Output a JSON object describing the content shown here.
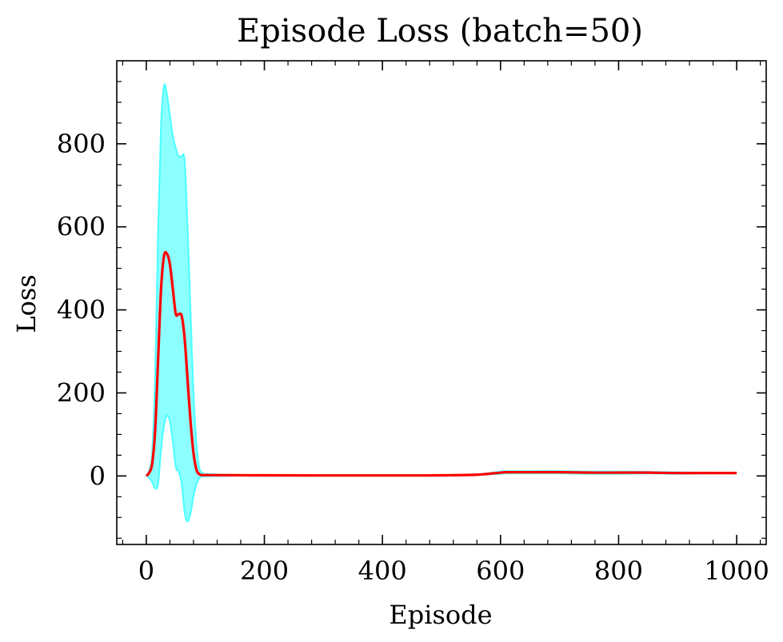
{
  "chart_data": {
    "type": "line",
    "title": "Episode Loss (batch=50)",
    "xlabel": "Episode",
    "ylabel": "Loss",
    "xlim": [
      -50,
      1050
    ],
    "ylim": [
      -165,
      1000
    ],
    "x_ticks": [
      0,
      200,
      400,
      600,
      800,
      1000
    ],
    "y_ticks": [
      0,
      200,
      400,
      600,
      800
    ],
    "grid": false,
    "tick_direction": "in",
    "series": [
      {
        "color": "#ff0000",
        "x": [
          0,
          5,
          10,
          15,
          20,
          25,
          30,
          35,
          40,
          45,
          50,
          55,
          60,
          65,
          70,
          75,
          80,
          85,
          90,
          95,
          100,
          150,
          200,
          300,
          400,
          450,
          500,
          560,
          600,
          610,
          650,
          700,
          750,
          800,
          850,
          900,
          950,
          1000
        ],
        "y": [
          0,
          8,
          30,
          110,
          280,
          450,
          530,
          535,
          510,
          450,
          390,
          390,
          385,
          330,
          230,
          130,
          55,
          15,
          4,
          2,
          2,
          1.8,
          1.5,
          1.2,
          1.2,
          1.2,
          1.5,
          3,
          8,
          9,
          9,
          9,
          8,
          8,
          8,
          7,
          7,
          7
        ]
      }
    ],
    "band": {
      "color": "#00ffff",
      "x": [
        0,
        5,
        10,
        15,
        20,
        25,
        30,
        35,
        40,
        45,
        50,
        55,
        60,
        65,
        70,
        75,
        80,
        85,
        90,
        95,
        100,
        150,
        200,
        300,
        400,
        450,
        500,
        560,
        600,
        610,
        650,
        700,
        750,
        800,
        850,
        900,
        950,
        1000
      ],
      "upper": [
        0,
        15,
        60,
        250,
        600,
        850,
        940,
        920,
        870,
        820,
        790,
        770,
        770,
        760,
        600,
        400,
        200,
        80,
        20,
        8,
        5,
        3,
        2.5,
        2,
        2,
        2,
        2.5,
        4,
        11,
        12,
        12,
        12,
        11,
        11,
        10,
        9,
        8,
        8
      ],
      "lower": [
        0,
        -5,
        -15,
        -30,
        -20,
        60,
        120,
        145,
        130,
        80,
        20,
        10,
        -20,
        -90,
        -110,
        -90,
        -50,
        -20,
        -5,
        -1,
        -1,
        0.6,
        0.5,
        0.4,
        0.4,
        0.4,
        0.5,
        2,
        5,
        6,
        6,
        6,
        5,
        5,
        6,
        5,
        6,
        6
      ]
    }
  }
}
